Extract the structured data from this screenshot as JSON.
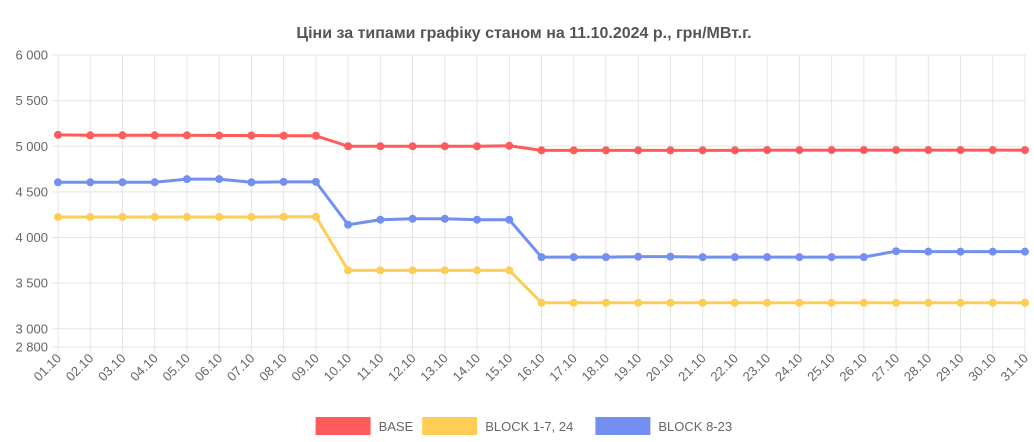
{
  "chart_data": {
    "type": "line",
    "title": "Ціни за типами графіку станом на 11.10.2024 р., грн/МВт.г.",
    "xlabel": "",
    "ylabel": "",
    "categories": [
      "01.10",
      "02.10",
      "03.10",
      "04.10",
      "05.10",
      "06.10",
      "07.10",
      "08.10",
      "09.10",
      "10.10",
      "11.10",
      "12.10",
      "13.10",
      "14.10",
      "15.10",
      "16.10",
      "17.10",
      "18.10",
      "19.10",
      "20.10",
      "21.10",
      "22.10",
      "23.10",
      "24.10",
      "25.10",
      "26.10",
      "27.10",
      "28.10",
      "29.10",
      "30.10",
      "31.10"
    ],
    "ylim": [
      2800,
      6000
    ],
    "y_ticks": [
      2800,
      3000,
      3500,
      4000,
      4500,
      5000,
      5500,
      6000
    ],
    "y_tick_labels": [
      "2 800",
      "3 000",
      "3 500",
      "4 000",
      "4 500",
      "5 000",
      "5 500",
      "6 000"
    ],
    "grid": true,
    "legend_position": "bottom",
    "series": [
      {
        "name": "BASE",
        "color": "#ff5b5b",
        "values": [
          5125,
          5120,
          5120,
          5120,
          5120,
          5118,
          5118,
          5115,
          5115,
          5000,
          5000,
          5000,
          5000,
          5000,
          5005,
          4955,
          4955,
          4955,
          4955,
          4955,
          4955,
          4955,
          4958,
          4958,
          4958,
          4958,
          4958,
          4958,
          4958,
          4958,
          4958
        ]
      },
      {
        "name": "BLOCK 1-7, 24",
        "color": "#ffcd55",
        "values": [
          4225,
          4225,
          4225,
          4225,
          4225,
          4225,
          4225,
          4228,
          4228,
          3640,
          3640,
          3640,
          3640,
          3640,
          3640,
          3285,
          3285,
          3285,
          3285,
          3285,
          3285,
          3285,
          3285,
          3285,
          3285,
          3285,
          3285,
          3285,
          3285,
          3285,
          3285
        ]
      },
      {
        "name": "BLOCK 8-23",
        "color": "#7390f0",
        "values": [
          4605,
          4605,
          4605,
          4605,
          4640,
          4640,
          4605,
          4610,
          4610,
          4140,
          4195,
          4205,
          4205,
          4195,
          4195,
          3785,
          3785,
          3785,
          3790,
          3790,
          3785,
          3785,
          3785,
          3785,
          3785,
          3785,
          3850,
          3845,
          3845,
          3845,
          3845
        ]
      }
    ]
  }
}
